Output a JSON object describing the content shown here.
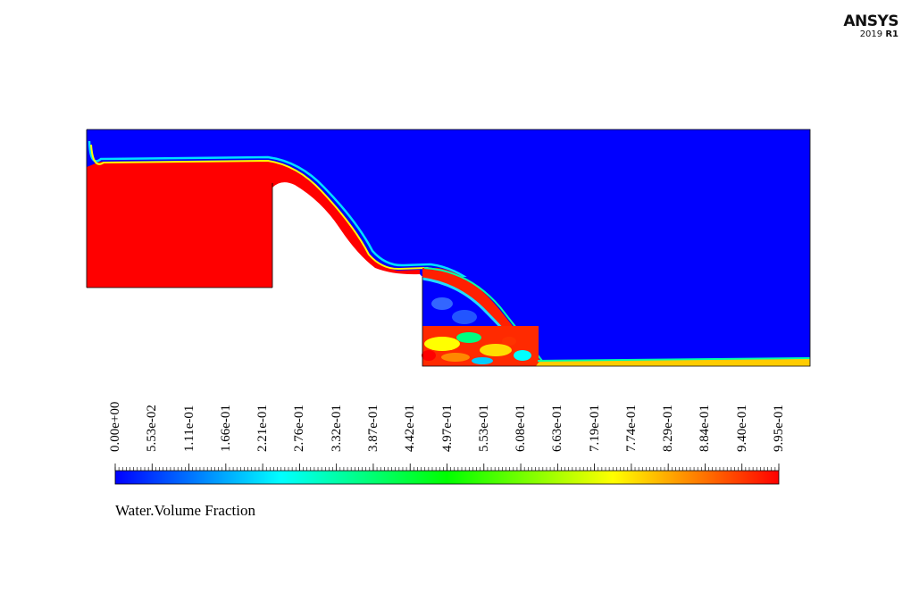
{
  "app": {
    "brand": "ANSYS",
    "year": "2019",
    "release": "R1"
  },
  "contour": {
    "variable": "Water.Volume Fraction",
    "range": [
      0.0,
      0.995
    ],
    "tick_labels": [
      "0.00e+00",
      "5.53e-02",
      "1.11e-01",
      "1.66e-01",
      "2.21e-01",
      "2.76e-01",
      "3.32e-01",
      "3.87e-01",
      "4.42e-01",
      "4.97e-01",
      "5.53e-01",
      "6.08e-01",
      "6.63e-01",
      "7.19e-01",
      "7.74e-01",
      "8.29e-01",
      "8.84e-01",
      "9.40e-01",
      "9.95e-01"
    ],
    "colormap": [
      "#0000ff",
      "#00ffff",
      "#00ff00",
      "#ffff00",
      "#ff0000"
    ],
    "colors": {
      "water": "#ff0000",
      "air": "#0000ff",
      "background": "#ffffff"
    }
  }
}
